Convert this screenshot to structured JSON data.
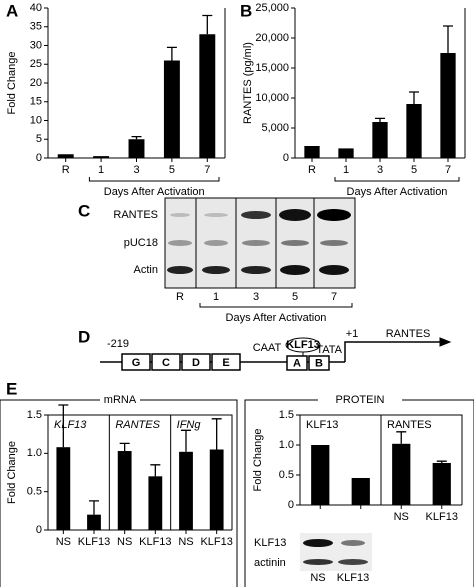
{
  "panel_labels": [
    "A",
    "B",
    "C",
    "D",
    "E"
  ],
  "chart_data": [
    {
      "type": "bar",
      "y_label": "Fold Change",
      "x_group_label": "Days After Activation",
      "categories": [
        "R",
        "1",
        "3",
        "5",
        "7"
      ],
      "values": [
        1,
        0.5,
        5,
        26,
        33
      ],
      "errors": [
        0,
        0,
        0.7,
        3.5,
        5
      ],
      "color": "#000000",
      "ylim": [
        0,
        40
      ],
      "yticks": [
        0,
        5,
        10,
        15,
        20,
        25,
        30,
        35,
        40
      ]
    },
    {
      "type": "bar",
      "y_label": "RANTES (pg/ml)",
      "x_group_label": "Days After Activation",
      "categories": [
        "R",
        "1",
        "3",
        "5",
        "7"
      ],
      "values": [
        2000,
        1600,
        6000,
        9000,
        17500
      ],
      "errors": [
        0,
        0,
        600,
        2000,
        4500
      ],
      "color": "#000000",
      "ylim": [
        0,
        25000
      ],
      "yticks": [
        0,
        {
          "value": 5000,
          "label": "5,000"
        },
        {
          "value": 10000,
          "label": "10,000"
        },
        {
          "value": 15000,
          "label": "15,000"
        },
        {
          "value": 20000,
          "label": "20,000"
        },
        {
          "value": 25000,
          "label": "25,000"
        }
      ]
    },
    {
      "type": "bar",
      "title": "mRNA",
      "y_label": "Fold Change",
      "color": "#000000",
      "ylim": [
        0,
        1.5
      ],
      "yticks": [
        0,
        0.5,
        {
          "value": 1,
          "label": "1.0"
        },
        1.5
      ],
      "panels": [
        {
          "title": "KLF13",
          "categories": [
            "NS",
            "KLF13"
          ],
          "values": [
            1.08,
            0.2
          ],
          "errors": [
            0.55,
            0.18
          ]
        },
        {
          "title": "RANTES",
          "categories": [
            "NS",
            "KLF13"
          ],
          "values": [
            1.03,
            0.7
          ],
          "errors": [
            0.1,
            0.15
          ]
        },
        {
          "title": "IFNg",
          "categories": [
            "NS",
            "KLF13"
          ],
          "values": [
            1.02,
            1.05
          ],
          "errors": [
            0.28,
            0.4
          ]
        }
      ]
    },
    {
      "type": "bar",
      "title": "PROTEIN",
      "y_label": "Fold Change",
      "color": "#000000",
      "ylim": [
        0,
        1.5
      ],
      "yticks": [
        0,
        0.5,
        {
          "value": 1,
          "label": "1.0"
        },
        1.5
      ],
      "panels": [
        {
          "title": "KLF13",
          "categories": [
            null,
            null
          ],
          "values": [
            1.0,
            0.45
          ],
          "errors": [
            0,
            0
          ]
        },
        {
          "title": "RANTES",
          "categories": [
            "NS",
            "KLF13"
          ],
          "values": [
            1.02,
            0.7
          ],
          "errors": [
            0.2,
            0.03
          ]
        }
      ]
    }
  ],
  "blot_c": {
    "rows": [
      "RANTES",
      "pUC18",
      "Actin"
    ],
    "lanes": [
      "R",
      "1",
      "3",
      "5",
      "7"
    ],
    "group_label": "Days After Activation"
  },
  "promoter": {
    "start": "-219",
    "boxes": [
      "G",
      "C",
      "D",
      "E"
    ],
    "caat": "CAAT",
    "factor": "KLF13",
    "boxes2": [
      "A",
      "B"
    ],
    "tata": "TATA",
    "tss": "+1",
    "gene": "RANTES"
  },
  "blot_e": {
    "rows": [
      "KLF13",
      "actinin"
    ],
    "lanes": [
      "NS",
      "KLF13"
    ]
  }
}
